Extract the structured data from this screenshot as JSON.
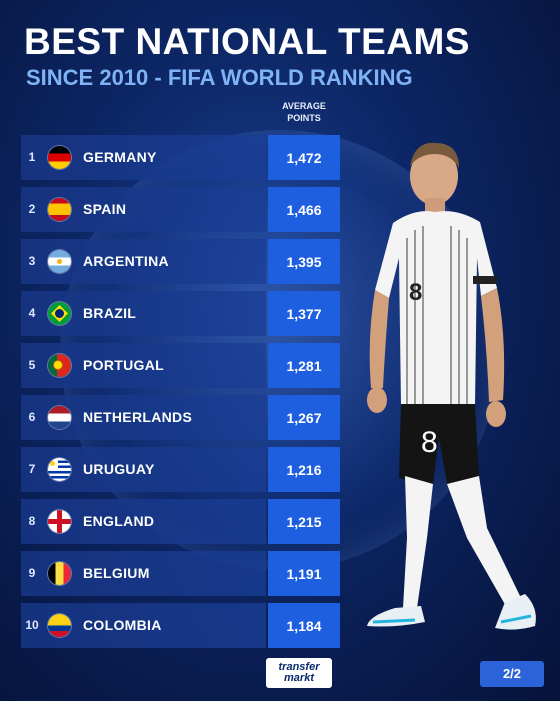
{
  "header": {
    "title": "BEST NATIONAL TEAMS",
    "subtitle": "SINCE 2010 - FIFA WORLD RANKING",
    "column_head_line1": "AVERAGE",
    "column_head_line2": "POINTS"
  },
  "rows": [
    {
      "rank": "1",
      "team": "GERMANY",
      "points": "1,472",
      "flag": "germany-flag-icon"
    },
    {
      "rank": "2",
      "team": "SPAIN",
      "points": "1,466",
      "flag": "spain-flag-icon"
    },
    {
      "rank": "3",
      "team": "ARGENTINA",
      "points": "1,395",
      "flag": "argentina-flag-icon"
    },
    {
      "rank": "4",
      "team": "BRAZIL",
      "points": "1,377",
      "flag": "brazil-flag-icon"
    },
    {
      "rank": "5",
      "team": "PORTUGAL",
      "points": "1,281",
      "flag": "portugal-flag-icon"
    },
    {
      "rank": "6",
      "team": "NETHERLANDS",
      "points": "1,267",
      "flag": "netherlands-flag-icon"
    },
    {
      "rank": "7",
      "team": "URUGUAY",
      "points": "1,216",
      "flag": "uruguay-flag-icon"
    },
    {
      "rank": "8",
      "team": "ENGLAND",
      "points": "1,215",
      "flag": "england-flag-icon"
    },
    {
      "rank": "9",
      "team": "BELGIUM",
      "points": "1,191",
      "flag": "belgium-flag-icon"
    },
    {
      "rank": "10",
      "team": "COLOMBIA",
      "points": "1,184",
      "flag": "colombia-flag-icon"
    }
  ],
  "footer": {
    "logo_line1": "transfer",
    "logo_line2": "markt",
    "page_indicator": "2/2"
  },
  "colors": {
    "background": "#0d2766",
    "points_cell": "#1e5fe0",
    "subtitle": "#7fb3f5"
  }
}
